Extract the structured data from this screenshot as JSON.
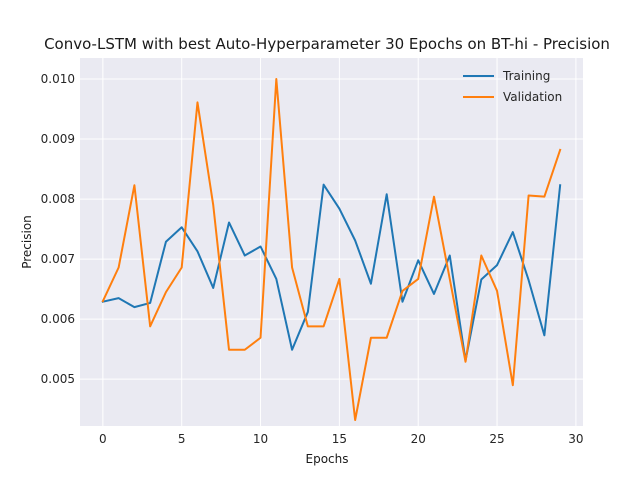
{
  "chart_data": {
    "type": "line",
    "title": "Convo-LSTM with best Auto-Hyperparameter 30 Epochs on BT-hi - Precision",
    "xlabel": "Epochs",
    "ylabel": "Precision",
    "xlim": [
      -1.45,
      30.45
    ],
    "ylim": [
      0.00422,
      0.01035
    ],
    "x_ticks": [
      0,
      5,
      10,
      15,
      20,
      25,
      30
    ],
    "x_tick_labels": [
      "0",
      "5",
      "10",
      "15",
      "20",
      "25",
      "30"
    ],
    "y_ticks": [
      0.005,
      0.006,
      0.007,
      0.008,
      0.009,
      0.01
    ],
    "y_tick_labels": [
      "0.005",
      "0.006",
      "0.007",
      "0.008",
      "0.009",
      "0.010"
    ],
    "grid": true,
    "legend_position": "upper right",
    "x": [
      0,
      1,
      2,
      3,
      4,
      5,
      6,
      7,
      8,
      9,
      10,
      11,
      12,
      13,
      14,
      15,
      16,
      17,
      18,
      19,
      20,
      21,
      22,
      23,
      24,
      25,
      26,
      27,
      28,
      29
    ],
    "series": [
      {
        "name": "Training",
        "color": "#1f77b4",
        "values": [
          0.00629,
          0.00635,
          0.0062,
          0.00627,
          0.00729,
          0.00753,
          0.00713,
          0.00652,
          0.00761,
          0.00706,
          0.00721,
          0.00667,
          0.00549,
          0.00612,
          0.00824,
          0.00784,
          0.00731,
          0.00659,
          0.00808,
          0.00629,
          0.00698,
          0.00642,
          0.00706,
          0.00531,
          0.00666,
          0.0069,
          0.00745,
          0.00665,
          0.00573,
          0.00823
        ]
      },
      {
        "name": "Validation",
        "color": "#ff7f0e",
        "values": [
          0.0063,
          0.00686,
          0.00823,
          0.00588,
          0.00645,
          0.00686,
          0.00961,
          0.0079,
          0.00549,
          0.00549,
          0.00569,
          0.01,
          0.00686,
          0.00588,
          0.00588,
          0.00667,
          0.00432,
          0.00569,
          0.00569,
          0.00647,
          0.00667,
          0.00804,
          0.00667,
          0.00529,
          0.00706,
          0.00647,
          0.0049,
          0.00806,
          0.00804,
          0.00882
        ]
      }
    ]
  }
}
